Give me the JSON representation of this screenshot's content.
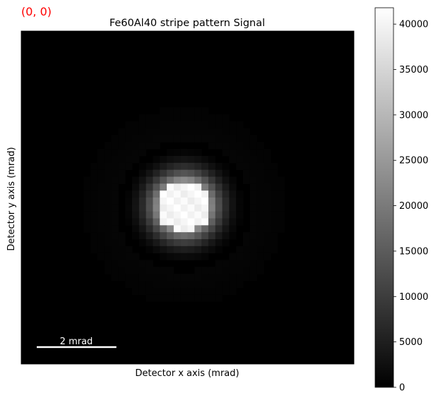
{
  "navigator_label": "(0, 0)",
  "navigator_color": "#ff0000",
  "chart_data": {
    "type": "heatmap",
    "title": "Fe60Al40 stripe pattern Signal",
    "xlabel": "Detector x axis (mrad)",
    "ylabel": "Detector y axis (mrad)",
    "colormap": "gray",
    "value_range": [
      0,
      41800
    ],
    "spot": {
      "peak_value": 41800,
      "center_x_mrad": 4.6,
      "center_y_mrad": 5.1,
      "radius_mrad": 0.75,
      "halo_radius_mrad": 1.9
    },
    "detector_extent_mrad": [
      9.4,
      9.7
    ],
    "scalebar": {
      "label": "2 mrad",
      "length_mrad": 2.25,
      "color": "#ffffff"
    },
    "colorbar": {
      "ticks": [
        0,
        5000,
        10000,
        15000,
        20000,
        25000,
        30000,
        35000,
        40000
      ],
      "tick_labels": [
        "0",
        "5000",
        "10000",
        "15000",
        "20000",
        "25000",
        "30000",
        "35000",
        "40000"
      ]
    }
  }
}
